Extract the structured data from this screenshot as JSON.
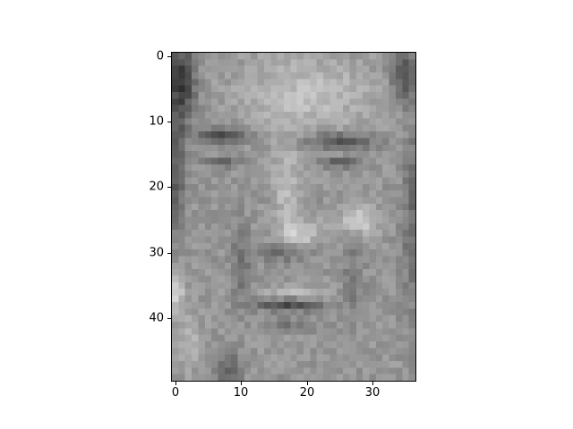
{
  "chart_data": {
    "type": "heatmap",
    "description_of_values": "grayscale pixel intensities (approximate)",
    "colormap": "gray",
    "shape": [
      50,
      37
    ],
    "xlim": [
      -0.5,
      36.5
    ],
    "ylim": [
      49.5,
      -0.5
    ],
    "x_ticks": [
      0,
      10,
      20,
      30
    ],
    "y_ticks": [
      0,
      10,
      20,
      30,
      40
    ],
    "x_tick_labels": [
      "0",
      "10",
      "20",
      "30"
    ],
    "y_tick_labels": [
      "0",
      "10",
      "20",
      "30",
      "40"
    ],
    "title": "",
    "xlabel": "",
    "ylabel": "",
    "grid": false,
    "legend": "none"
  }
}
